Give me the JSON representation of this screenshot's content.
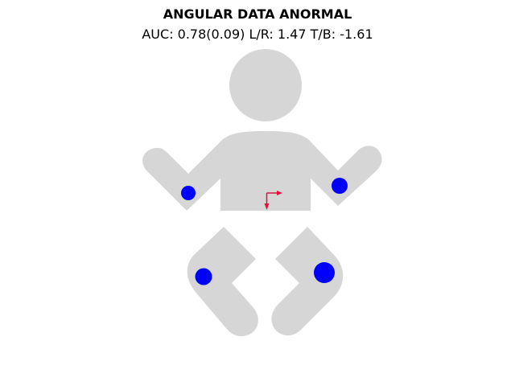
{
  "header": {
    "title": "ANGULAR DATA ANORMAL",
    "subtitle": "AUC: 0.78(0.09) L/R: 1.47 T/B: -1.61"
  },
  "colors": {
    "body": "#d6d6d6",
    "markers": "#0000ff",
    "arrow": "#dc143c",
    "background": "#ffffff"
  },
  "figure": {
    "markers": [
      {
        "name": "marker-right-arm"
      },
      {
        "name": "marker-left-arm"
      },
      {
        "name": "marker-right-leg"
      },
      {
        "name": "marker-left-leg"
      }
    ],
    "arrow": {
      "name": "direction-arrow"
    }
  }
}
